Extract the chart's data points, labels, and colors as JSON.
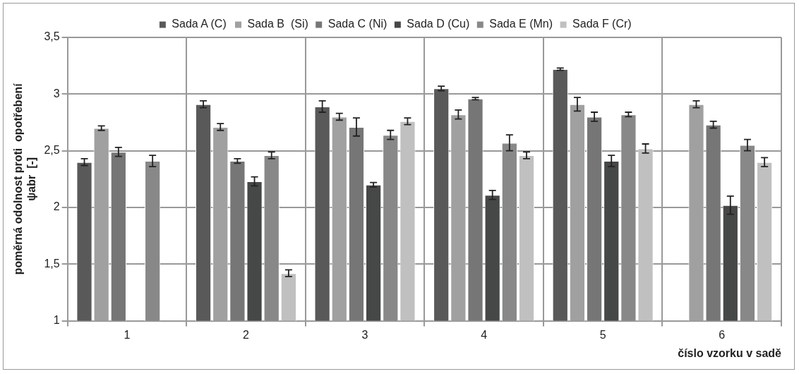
{
  "chart_data": {
    "type": "bar",
    "xlabel": "číslo vzorku v sadě",
    "ylabel": "poměrná odolnost proti  opotřebení\nψabr  [-]",
    "categories": [
      "1",
      "2",
      "3",
      "4",
      "5",
      "6"
    ],
    "series": [
      {
        "name": "Sada A (C)",
        "color": "#595959",
        "values": [
          2.4,
          2.91,
          2.89,
          3.05,
          3.22,
          null
        ],
        "errors": [
          0.03,
          0.03,
          0.05,
          0.02,
          0.01,
          null
        ]
      },
      {
        "name": "Sada B  (Si)",
        "color": "#a0a0a0",
        "values": [
          2.7,
          2.71,
          2.8,
          2.82,
          2.91,
          2.91
        ],
        "errors": [
          0.02,
          0.03,
          0.03,
          0.04,
          0.06,
          0.03
        ]
      },
      {
        "name": "Sada C (Ni)",
        "color": "#767676",
        "values": [
          2.49,
          2.41,
          2.71,
          2.96,
          2.8,
          2.73
        ],
        "errors": [
          0.04,
          0.02,
          0.08,
          0.01,
          0.04,
          0.03
        ]
      },
      {
        "name": "Sada D (Cu)",
        "color": "#464848",
        "values": [
          null,
          2.23,
          2.2,
          2.11,
          2.41,
          2.02
        ],
        "errors": [
          null,
          0.04,
          0.02,
          0.04,
          0.05,
          0.08
        ]
      },
      {
        "name": "Sada E (Mn)",
        "color": "#888888",
        "values": [
          2.41,
          2.46,
          2.64,
          2.57,
          2.82,
          2.55
        ],
        "errors": [
          0.05,
          0.03,
          0.04,
          0.07,
          0.02,
          0.05
        ]
      },
      {
        "name": "Sada F (Cr)",
        "color": "#c0c0c0",
        "values": [
          null,
          1.42,
          2.76,
          2.46,
          2.52,
          2.4
        ],
        "errors": [
          null,
          0.03,
          0.03,
          0.03,
          0.04,
          0.04
        ]
      }
    ],
    "ylim": [
      1,
      3.5
    ],
    "yticks": [
      1,
      {
        "value": 1.5,
        "label": "1,5"
      },
      2,
      {
        "value": 2.5,
        "label": "2,5"
      },
      3,
      {
        "value": 3.5,
        "label": "3,5"
      }
    ],
    "grid": true,
    "legend": "top"
  }
}
